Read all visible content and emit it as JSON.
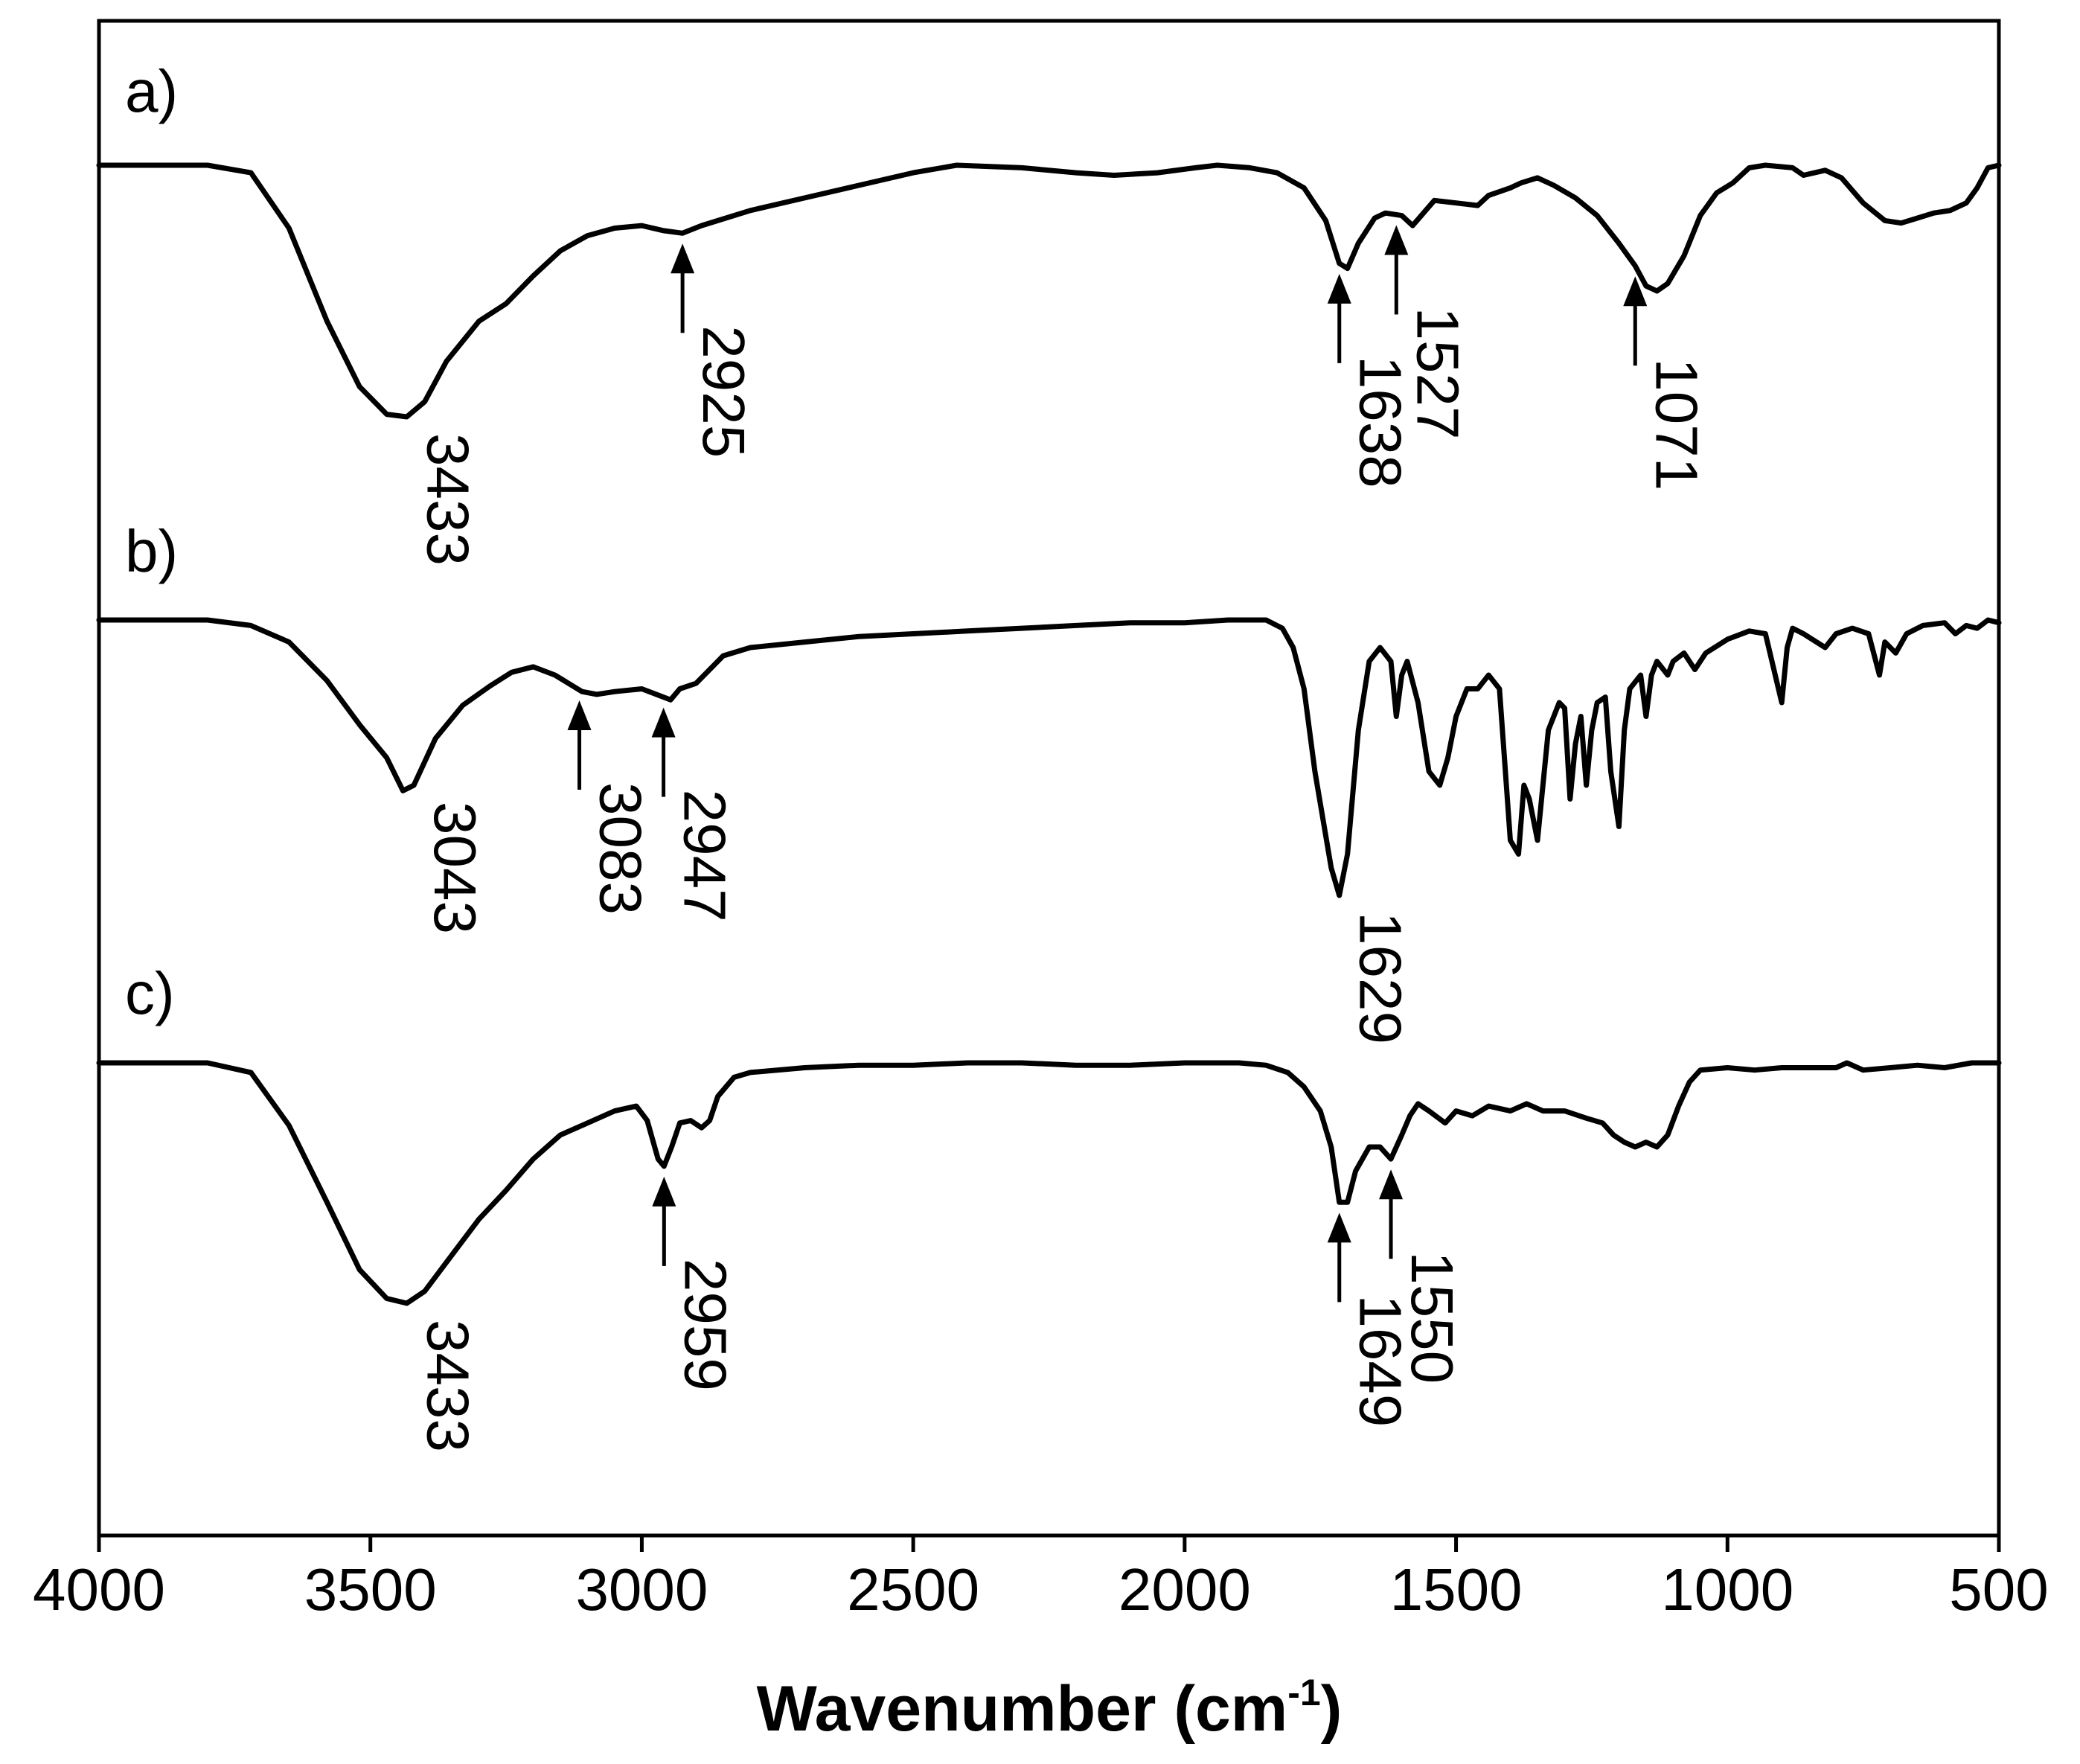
{
  "chart_data": {
    "type": "line",
    "title": "",
    "xlabel": "Wavenumber (cm",
    "xlabel_superscript": "-1",
    "xlabel_suffix": ")",
    "ylabel": "",
    "xlim": [
      4000,
      500
    ],
    "x_reversed": true,
    "xticks": [
      4000,
      3500,
      3000,
      2500,
      2000,
      1500,
      1000,
      500
    ],
    "xtick_labels": [
      "4000",
      "3500",
      "3000",
      "2500",
      "2000",
      "1500",
      "1000",
      "500"
    ],
    "grid": false,
    "series": [
      {
        "name": "a)",
        "points": [
          [
            4000,
            0.0
          ],
          [
            3800,
            0.0
          ],
          [
            3720,
            -0.03
          ],
          [
            3650,
            -0.25
          ],
          [
            3580,
            -0.62
          ],
          [
            3520,
            -0.88
          ],
          [
            3470,
            -0.99
          ],
          [
            3433,
            -1.0
          ],
          [
            3400,
            -0.94
          ],
          [
            3360,
            -0.78
          ],
          [
            3300,
            -0.62
          ],
          [
            3250,
            -0.55
          ],
          [
            3200,
            -0.44
          ],
          [
            3150,
            -0.34
          ],
          [
            3100,
            -0.28
          ],
          [
            3050,
            -0.25
          ],
          [
            3000,
            -0.24
          ],
          [
            2960,
            -0.26
          ],
          [
            2925,
            -0.27
          ],
          [
            2890,
            -0.24
          ],
          [
            2860,
            -0.22
          ],
          [
            2800,
            -0.18
          ],
          [
            2700,
            -0.13
          ],
          [
            2600,
            -0.08
          ],
          [
            2500,
            -0.03
          ],
          [
            2420,
            0.0
          ],
          [
            2300,
            -0.01
          ],
          [
            2200,
            -0.03
          ],
          [
            2130,
            -0.04
          ],
          [
            2050,
            -0.03
          ],
          [
            1980,
            -0.01
          ],
          [
            1940,
            0.0
          ],
          [
            1880,
            -0.01
          ],
          [
            1830,
            -0.03
          ],
          [
            1780,
            -0.09
          ],
          [
            1740,
            -0.22
          ],
          [
            1715,
            -0.39
          ],
          [
            1700,
            -0.41
          ],
          [
            1680,
            -0.31
          ],
          [
            1650,
            -0.21
          ],
          [
            1630,
            -0.19
          ],
          [
            1600,
            -0.2
          ],
          [
            1580,
            -0.24
          ],
          [
            1560,
            -0.19
          ],
          [
            1540,
            -0.14
          ],
          [
            1500,
            -0.15
          ],
          [
            1460,
            -0.16
          ],
          [
            1440,
            -0.12
          ],
          [
            1400,
            -0.09
          ],
          [
            1380,
            -0.07
          ],
          [
            1350,
            -0.05
          ],
          [
            1320,
            -0.08
          ],
          [
            1280,
            -0.13
          ],
          [
            1240,
            -0.2
          ],
          [
            1200,
            -0.31
          ],
          [
            1170,
            -0.4
          ],
          [
            1150,
            -0.48
          ],
          [
            1130,
            -0.5
          ],
          [
            1110,
            -0.47
          ],
          [
            1080,
            -0.36
          ],
          [
            1050,
            -0.2
          ],
          [
            1020,
            -0.11
          ],
          [
            990,
            -0.07
          ],
          [
            960,
            -0.01
          ],
          [
            930,
            0.0
          ],
          [
            880,
            -0.01
          ],
          [
            860,
            -0.04
          ],
          [
            820,
            -0.02
          ],
          [
            790,
            -0.05
          ],
          [
            750,
            -0.15
          ],
          [
            710,
            -0.22
          ],
          [
            680,
            -0.23
          ],
          [
            650,
            -0.21
          ],
          [
            620,
            -0.19
          ],
          [
            590,
            -0.18
          ],
          [
            560,
            -0.15
          ],
          [
            540,
            -0.09
          ],
          [
            520,
            -0.01
          ],
          [
            500,
            0.0
          ]
        ]
      },
      {
        "name": "b)",
        "points": [
          [
            4000,
            0.0
          ],
          [
            3800,
            0.0
          ],
          [
            3720,
            -0.02
          ],
          [
            3650,
            -0.08
          ],
          [
            3580,
            -0.22
          ],
          [
            3520,
            -0.38
          ],
          [
            3470,
            -0.5
          ],
          [
            3440,
            -0.62
          ],
          [
            3420,
            -0.6
          ],
          [
            3380,
            -0.43
          ],
          [
            3330,
            -0.31
          ],
          [
            3280,
            -0.24
          ],
          [
            3240,
            -0.19
          ],
          [
            3200,
            -0.17
          ],
          [
            3160,
            -0.2
          ],
          [
            3110,
            -0.26
          ],
          [
            3083,
            -0.27
          ],
          [
            3050,
            -0.26
          ],
          [
            3000,
            -0.25
          ],
          [
            2960,
            -0.28
          ],
          [
            2947,
            -0.29
          ],
          [
            2930,
            -0.25
          ],
          [
            2900,
            -0.23
          ],
          [
            2850,
            -0.13
          ],
          [
            2800,
            -0.1
          ],
          [
            2700,
            -0.08
          ],
          [
            2600,
            -0.06
          ],
          [
            2500,
            -0.05
          ],
          [
            2400,
            -0.04
          ],
          [
            2300,
            -0.03
          ],
          [
            2200,
            -0.02
          ],
          [
            2100,
            -0.01
          ],
          [
            2000,
            -0.01
          ],
          [
            1920,
            0.0
          ],
          [
            1850,
            0.0
          ],
          [
            1820,
            -0.03
          ],
          [
            1800,
            -0.1
          ],
          [
            1780,
            -0.25
          ],
          [
            1760,
            -0.55
          ],
          [
            1730,
            -0.9
          ],
          [
            1715,
            -1.0
          ],
          [
            1700,
            -0.85
          ],
          [
            1680,
            -0.4
          ],
          [
            1660,
            -0.15
          ],
          [
            1640,
            -0.1
          ],
          [
            1620,
            -0.15
          ],
          [
            1610,
            -0.35
          ],
          [
            1600,
            -0.2
          ],
          [
            1590,
            -0.15
          ],
          [
            1570,
            -0.3
          ],
          [
            1550,
            -0.55
          ],
          [
            1530,
            -0.6
          ],
          [
            1515,
            -0.5
          ],
          [
            1500,
            -0.35
          ],
          [
            1480,
            -0.25
          ],
          [
            1460,
            -0.25
          ],
          [
            1440,
            -0.2
          ],
          [
            1420,
            -0.25
          ],
          [
            1400,
            -0.8
          ],
          [
            1385,
            -0.85
          ],
          [
            1375,
            -0.6
          ],
          [
            1365,
            -0.65
          ],
          [
            1350,
            -0.8
          ],
          [
            1340,
            -0.6
          ],
          [
            1330,
            -0.4
          ],
          [
            1310,
            -0.3
          ],
          [
            1300,
            -0.32
          ],
          [
            1290,
            -0.65
          ],
          [
            1280,
            -0.45
          ],
          [
            1270,
            -0.35
          ],
          [
            1260,
            -0.6
          ],
          [
            1250,
            -0.4
          ],
          [
            1240,
            -0.3
          ],
          [
            1225,
            -0.28
          ],
          [
            1215,
            -0.55
          ],
          [
            1200,
            -0.75
          ],
          [
            1190,
            -0.4
          ],
          [
            1180,
            -0.25
          ],
          [
            1160,
            -0.2
          ],
          [
            1150,
            -0.35
          ],
          [
            1140,
            -0.2
          ],
          [
            1130,
            -0.15
          ],
          [
            1110,
            -0.2
          ],
          [
            1100,
            -0.15
          ],
          [
            1080,
            -0.12
          ],
          [
            1060,
            -0.18
          ],
          [
            1040,
            -0.12
          ],
          [
            1000,
            -0.07
          ],
          [
            960,
            -0.04
          ],
          [
            930,
            -0.05
          ],
          [
            900,
            -0.3
          ],
          [
            890,
            -0.1
          ],
          [
            880,
            -0.03
          ],
          [
            860,
            -0.05
          ],
          [
            820,
            -0.1
          ],
          [
            800,
            -0.05
          ],
          [
            770,
            -0.03
          ],
          [
            740,
            -0.05
          ],
          [
            720,
            -0.2
          ],
          [
            710,
            -0.08
          ],
          [
            690,
            -0.12
          ],
          [
            670,
            -0.05
          ],
          [
            640,
            -0.02
          ],
          [
            600,
            -0.01
          ],
          [
            580,
            -0.05
          ],
          [
            560,
            -0.02
          ],
          [
            540,
            -0.03
          ],
          [
            520,
            0.0
          ],
          [
            500,
            -0.01
          ]
        ]
      },
      {
        "name": "c)",
        "points": [
          [
            4000,
            0.0
          ],
          [
            3800,
            0.0
          ],
          [
            3720,
            -0.04
          ],
          [
            3650,
            -0.26
          ],
          [
            3580,
            -0.58
          ],
          [
            3520,
            -0.86
          ],
          [
            3470,
            -0.98
          ],
          [
            3433,
            -1.0
          ],
          [
            3400,
            -0.95
          ],
          [
            3350,
            -0.8
          ],
          [
            3300,
            -0.65
          ],
          [
            3250,
            -0.53
          ],
          [
            3200,
            -0.4
          ],
          [
            3150,
            -0.3
          ],
          [
            3100,
            -0.25
          ],
          [
            3050,
            -0.2
          ],
          [
            3010,
            -0.18
          ],
          [
            2990,
            -0.24
          ],
          [
            2970,
            -0.4
          ],
          [
            2959,
            -0.43
          ],
          [
            2945,
            -0.35
          ],
          [
            2930,
            -0.25
          ],
          [
            2910,
            -0.24
          ],
          [
            2890,
            -0.27
          ],
          [
            2875,
            -0.24
          ],
          [
            2860,
            -0.14
          ],
          [
            2830,
            -0.06
          ],
          [
            2800,
            -0.04
          ],
          [
            2700,
            -0.02
          ],
          [
            2600,
            -0.01
          ],
          [
            2500,
            -0.01
          ],
          [
            2400,
            0.0
          ],
          [
            2300,
            0.0
          ],
          [
            2200,
            -0.01
          ],
          [
            2100,
            -0.01
          ],
          [
            2000,
            0.0
          ],
          [
            1900,
            0.0
          ],
          [
            1850,
            -0.01
          ],
          [
            1810,
            -0.04
          ],
          [
            1780,
            -0.1
          ],
          [
            1750,
            -0.2
          ],
          [
            1730,
            -0.35
          ],
          [
            1715,
            -0.58
          ],
          [
            1700,
            -0.58
          ],
          [
            1685,
            -0.45
          ],
          [
            1660,
            -0.35
          ],
          [
            1640,
            -0.35
          ],
          [
            1620,
            -0.4
          ],
          [
            1600,
            -0.3
          ],
          [
            1585,
            -0.22
          ],
          [
            1570,
            -0.17
          ],
          [
            1550,
            -0.2
          ],
          [
            1520,
            -0.25
          ],
          [
            1500,
            -0.2
          ],
          [
            1470,
            -0.22
          ],
          [
            1440,
            -0.18
          ],
          [
            1400,
            -0.2
          ],
          [
            1370,
            -0.17
          ],
          [
            1340,
            -0.2
          ],
          [
            1300,
            -0.2
          ],
          [
            1260,
            -0.23
          ],
          [
            1230,
            -0.25
          ],
          [
            1210,
            -0.3
          ],
          [
            1190,
            -0.33
          ],
          [
            1170,
            -0.35
          ],
          [
            1150,
            -0.33
          ],
          [
            1130,
            -0.35
          ],
          [
            1110,
            -0.3
          ],
          [
            1090,
            -0.18
          ],
          [
            1070,
            -0.08
          ],
          [
            1050,
            -0.03
          ],
          [
            1000,
            -0.02
          ],
          [
            950,
            -0.03
          ],
          [
            900,
            -0.02
          ],
          [
            850,
            -0.02
          ],
          [
            800,
            -0.02
          ],
          [
            780,
            0.0
          ],
          [
            750,
            -0.03
          ],
          [
            700,
            -0.02
          ],
          [
            650,
            -0.01
          ],
          [
            600,
            -0.02
          ],
          [
            550,
            0.0
          ],
          [
            500,
            0.0
          ]
        ]
      }
    ],
    "annotations": [
      {
        "panel": "a)",
        "label": "3433",
        "x": 3433,
        "arrow": false
      },
      {
        "panel": "a)",
        "label": "2925",
        "x": 2925,
        "arrow": true
      },
      {
        "panel": "a)",
        "label": "1638",
        "x": 1715,
        "arrow": true
      },
      {
        "panel": "a)",
        "label": "1527",
        "x": 1610,
        "arrow": true
      },
      {
        "panel": "a)",
        "label": "1071",
        "x": 1170,
        "arrow": true
      },
      {
        "panel": "b)",
        "label": "3043",
        "x": 3420,
        "arrow": false
      },
      {
        "panel": "b)",
        "label": "3083",
        "x": 3115,
        "arrow": true
      },
      {
        "panel": "b)",
        "label": "2947",
        "x": 2960,
        "arrow": true
      },
      {
        "panel": "b)",
        "label": "1629",
        "x": 1715,
        "arrow": false
      },
      {
        "panel": "c)",
        "label": "3433",
        "x": 3433,
        "arrow": false
      },
      {
        "panel": "c)",
        "label": "2959",
        "x": 2959,
        "arrow": true
      },
      {
        "panel": "c)",
        "label": "1649",
        "x": 1715,
        "arrow": true
      },
      {
        "panel": "c)",
        "label": "1550",
        "x": 1620,
        "arrow": true
      }
    ]
  }
}
